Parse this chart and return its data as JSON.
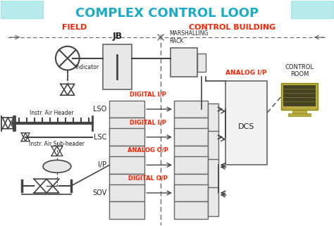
{
  "title": "COMPLEX CONTROL LOOP",
  "title_color": "#1AAACC",
  "field_label": "FIELD",
  "field_color": "#FF2200",
  "cb_label": "CONTROL BUILDING",
  "cb_color": "#FF2200",
  "jb_label": "JB",
  "mr_label": "MARSHALLING\nRACK",
  "dcs_label": "DCS",
  "analog_ip_label": "ANALOG I/P",
  "analog_ip_color": "#FF2200",
  "cr_label": "CONTROL\nROOM",
  "row_labels": [
    "LSO",
    "LSC",
    "I/P",
    "SOV"
  ],
  "signal_labels": [
    "DIGITAL I/P",
    "DIGITAL I/P",
    "ANALOG O/P",
    "DIGITAL O/P"
  ],
  "signal_color": "#FF2200",
  "indicator_label": "Indicator",
  "air_header_label": "Instr. Air Header",
  "air_subheader_label": "Instr. Air Sub-header",
  "bg_color": "#FFFFFF",
  "line_color": "#444444",
  "box_edge": "#666666",
  "box_face": "#E8E8E8",
  "dcs_face": "#F2F2F2",
  "dash_color": "#666666"
}
